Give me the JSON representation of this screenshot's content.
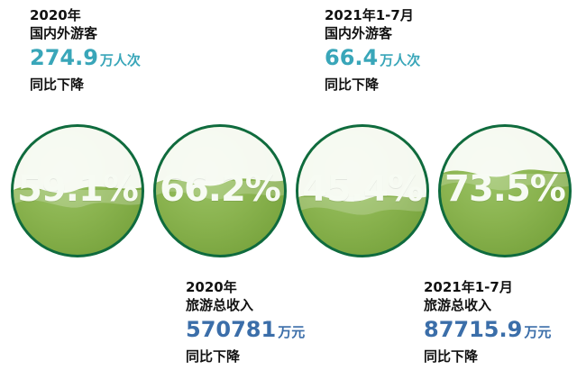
{
  "top_left": {
    "year": "2020年",
    "label": "国内外游客",
    "value": "274.9",
    "unit": "万人次",
    "change": "同比下降"
  },
  "top_right": {
    "year": "2021年1-7月",
    "label": "国内外游客",
    "value": "66.4",
    "unit": "万人次",
    "change": "同比下降"
  },
  "bottom_left": {
    "year": "2020年",
    "label": "旅游总收入",
    "value": "570781",
    "unit": "万元",
    "change": "同比下降"
  },
  "bottom_right": {
    "year": "2021年1-7月",
    "label": "旅游总收入",
    "value": "87715.9",
    "unit": "万元",
    "change": "同比下降"
  },
  "circles": [
    {
      "percent": "59.1%"
    },
    {
      "percent": "66.2%"
    },
    {
      "percent": "45.4%"
    },
    {
      "percent": "73.5%"
    }
  ],
  "colors": {
    "teal": "#39a6b9",
    "blue": "#3b6ea9",
    "green_border": "#0f6b3e",
    "green_fill": "#8ab34f"
  }
}
